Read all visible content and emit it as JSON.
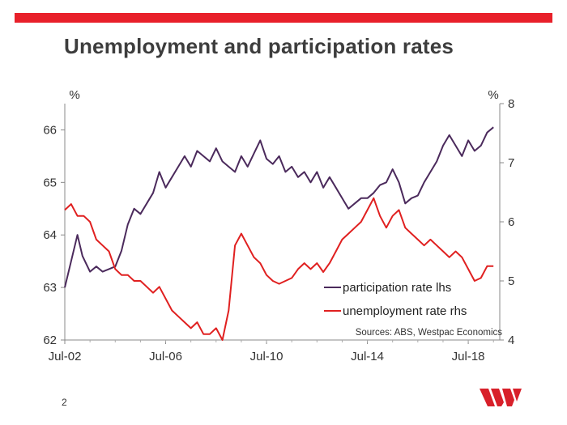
{
  "slide": {
    "title": "Unemployment and participation rates",
    "page_number": "2"
  },
  "colors": {
    "accent_bar": "#e8202a",
    "participation": "#4b2a5c",
    "unemployment": "#e02020",
    "logo": "#d8202a"
  },
  "chart_data": {
    "type": "line",
    "title": "Unemployment and participation rates",
    "x_tick_labels": [
      "Jul-02",
      "Jul-06",
      "Jul-10",
      "Jul-14",
      "Jul-18"
    ],
    "x_tick_positions": [
      2002.5,
      2006.5,
      2010.5,
      2014.5,
      2018.5
    ],
    "xlim": [
      2002.5,
      2019.75
    ],
    "left_axis": {
      "unit_label": "%",
      "ylim": [
        62,
        66.5
      ],
      "ticks": [
        "62",
        "63",
        "64",
        "65",
        "66"
      ]
    },
    "right_axis": {
      "unit_label": "%",
      "ylim": [
        4,
        8
      ],
      "ticks": [
        "4",
        "5",
        "6",
        "7",
        "8"
      ]
    },
    "legend": {
      "placement": "bottom-right",
      "entries": [
        "participation rate lhs",
        "unemployment rate rhs"
      ]
    },
    "source": "Sources: ABS, Westpac Economics",
    "series": [
      {
        "name": "participation rate lhs",
        "axis": "left",
        "x": [
          2002.5,
          2002.75,
          2003.0,
          2003.2,
          2003.5,
          2003.75,
          2004.0,
          2004.25,
          2004.5,
          2004.75,
          2005.0,
          2005.25,
          2005.5,
          2005.75,
          2006.0,
          2006.25,
          2006.5,
          2006.75,
          2007.0,
          2007.25,
          2007.5,
          2007.75,
          2008.0,
          2008.25,
          2008.5,
          2008.75,
          2009.0,
          2009.25,
          2009.5,
          2009.75,
          2010.0,
          2010.25,
          2010.5,
          2010.75,
          2011.0,
          2011.25,
          2011.5,
          2011.75,
          2012.0,
          2012.25,
          2012.5,
          2012.75,
          2013.0,
          2013.25,
          2013.5,
          2013.75,
          2014.0,
          2014.25,
          2014.5,
          2014.75,
          2015.0,
          2015.25,
          2015.5,
          2015.75,
          2016.0,
          2016.25,
          2016.5,
          2016.75,
          2017.0,
          2017.25,
          2017.5,
          2017.75,
          2018.0,
          2018.25,
          2018.5,
          2018.75,
          2019.0,
          2019.25,
          2019.5
        ],
        "values": [
          63.0,
          63.5,
          64.0,
          63.6,
          63.3,
          63.4,
          63.3,
          63.35,
          63.4,
          63.7,
          64.2,
          64.5,
          64.4,
          64.6,
          64.8,
          65.2,
          64.9,
          65.1,
          65.3,
          65.5,
          65.3,
          65.6,
          65.5,
          65.4,
          65.65,
          65.4,
          65.3,
          65.2,
          65.5,
          65.3,
          65.55,
          65.8,
          65.45,
          65.35,
          65.5,
          65.2,
          65.3,
          65.1,
          65.2,
          65.0,
          65.2,
          64.9,
          65.1,
          64.9,
          64.7,
          64.5,
          64.6,
          64.7,
          64.7,
          64.8,
          64.95,
          65.0,
          65.25,
          65.0,
          64.6,
          64.7,
          64.75,
          65.0,
          65.2,
          65.4,
          65.7,
          65.9,
          65.7,
          65.5,
          65.8,
          65.6,
          65.7,
          65.95,
          66.05
        ]
      },
      {
        "name": "unemployment rate rhs",
        "axis": "right",
        "x": [
          2002.5,
          2002.75,
          2003.0,
          2003.25,
          2003.5,
          2003.75,
          2004.0,
          2004.25,
          2004.5,
          2004.75,
          2005.0,
          2005.25,
          2005.5,
          2005.75,
          2006.0,
          2006.25,
          2006.5,
          2006.75,
          2007.0,
          2007.25,
          2007.5,
          2007.75,
          2008.0,
          2008.25,
          2008.5,
          2008.75,
          2009.0,
          2009.25,
          2009.5,
          2009.75,
          2010.0,
          2010.25,
          2010.5,
          2010.75,
          2011.0,
          2011.25,
          2011.5,
          2011.75,
          2012.0,
          2012.25,
          2012.5,
          2012.75,
          2013.0,
          2013.25,
          2013.5,
          2013.75,
          2014.0,
          2014.25,
          2014.5,
          2014.75,
          2015.0,
          2015.25,
          2015.5,
          2015.75,
          2016.0,
          2016.25,
          2016.5,
          2016.75,
          2017.0,
          2017.25,
          2017.5,
          2017.75,
          2018.0,
          2018.25,
          2018.5,
          2018.75,
          2019.0,
          2019.25,
          2019.5
        ],
        "values": [
          6.2,
          6.3,
          6.1,
          6.1,
          6.0,
          5.7,
          5.6,
          5.5,
          5.2,
          5.1,
          5.1,
          5.0,
          5.0,
          4.9,
          4.8,
          4.9,
          4.7,
          4.5,
          4.4,
          4.3,
          4.2,
          4.3,
          4.1,
          4.1,
          4.2,
          4.0,
          4.5,
          5.6,
          5.8,
          5.6,
          5.4,
          5.3,
          5.1,
          5.0,
          4.95,
          5.0,
          5.05,
          5.2,
          5.3,
          5.2,
          5.3,
          5.15,
          5.3,
          5.5,
          5.7,
          5.8,
          5.9,
          6.0,
          6.2,
          6.4,
          6.1,
          5.9,
          6.1,
          6.2,
          5.9,
          5.8,
          5.7,
          5.6,
          5.7,
          5.6,
          5.5,
          5.4,
          5.5,
          5.4,
          5.2,
          5.0,
          5.05,
          5.25,
          5.25
        ]
      }
    ]
  }
}
